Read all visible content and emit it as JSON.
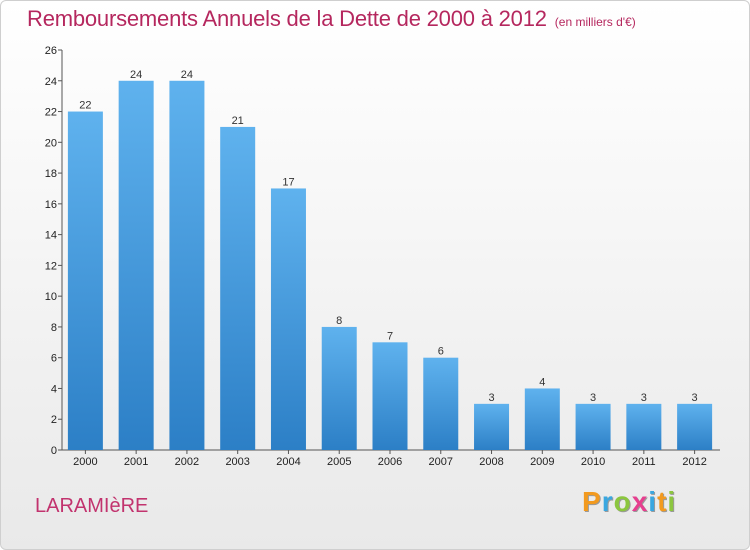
{
  "chart_data": {
    "type": "bar",
    "title": "Remboursements Annuels de la Dette de 2000 à 2012",
    "subtitle": "(en milliers d'€)",
    "categories": [
      "2000",
      "2001",
      "2002",
      "2003",
      "2004",
      "2005",
      "2006",
      "2007",
      "2008",
      "2009",
      "2010",
      "2011",
      "2012"
    ],
    "values": [
      22,
      24,
      24,
      21,
      17,
      8,
      7,
      6,
      3,
      4,
      3,
      3,
      3
    ],
    "ylim": [
      0,
      26
    ],
    "yticks": [
      0,
      2,
      4,
      6,
      8,
      10,
      12,
      14,
      16,
      18,
      20,
      22,
      24,
      26
    ],
    "grid": false,
    "bar_color": "#3a8fd6"
  },
  "footer": {
    "commune": "LARAMIèRE",
    "brand": [
      "P",
      "r",
      "o",
      "x",
      "i",
      "t",
      "i"
    ],
    "brand_colors": [
      "#f29a1f",
      "#3aa7e0",
      "#8cc63f",
      "#e63f8f",
      "#3aa7e0",
      "#f29a1f",
      "#8cc63f"
    ]
  }
}
